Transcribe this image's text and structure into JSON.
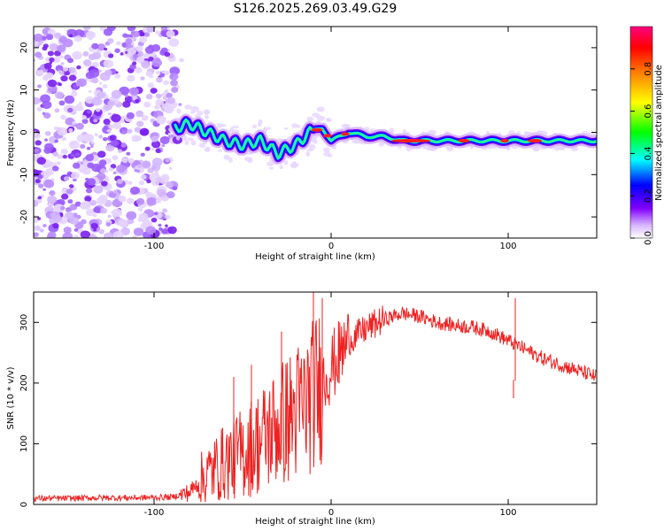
{
  "title": "S126.2025.269.03.49.G29",
  "chart_data": [
    {
      "type": "heatmap",
      "xlabel": "Height of straight line (km)",
      "ylabel": "Frequency (Hz)",
      "xlim": [
        -168,
        150
      ],
      "ylim": [
        -25,
        25
      ],
      "xticks": [
        -100,
        0,
        100
      ],
      "yticks": [
        -20,
        -10,
        0,
        10,
        20
      ],
      "noise_region_x": [
        -168,
        -88
      ],
      "ridge": {
        "x": [
          -88,
          -80,
          -70,
          -60,
          -50,
          -40,
          -30,
          -20,
          -12,
          -5,
          0,
          5,
          10,
          20,
          30,
          40,
          60,
          80,
          100,
          120,
          150
        ],
        "freq": [
          1,
          2,
          0,
          -2,
          -3,
          -2,
          -5,
          -3,
          0,
          1,
          -2,
          -1,
          0,
          -1,
          -1,
          -2,
          -2,
          -2,
          -2,
          -2,
          -2
        ]
      },
      "colorbar": {
        "label": "Normalized spectral amplitude",
        "range": [
          0,
          1
        ],
        "ticks": [
          0.0,
          0.2,
          0.4,
          0.6,
          0.8
        ],
        "tick_labels": [
          "0.0",
          "0.2",
          "0.4",
          "0.6",
          "0.8"
        ],
        "colors": [
          "#ffffff",
          "#8000ff",
          "#0000ff",
          "#00ffff",
          "#00ff00",
          "#ffff00",
          "#ff8000",
          "#ff0000",
          "#ff0080"
        ]
      }
    },
    {
      "type": "line",
      "xlabel": "Height of straight line (km)",
      "ylabel": "SNR (10 * v/v)",
      "xlim": [
        -168,
        150
      ],
      "ylim": [
        0,
        350
      ],
      "xticks": [
        -100,
        0,
        100
      ],
      "yticks": [
        0,
        100,
        200,
        300
      ],
      "color": "#ee2222",
      "series": {
        "x": [
          -168,
          -150,
          -130,
          -110,
          -90,
          -80,
          -70,
          -60,
          -50,
          -40,
          -30,
          -20,
          -10,
          0,
          10,
          20,
          30,
          40,
          50,
          60,
          70,
          80,
          90,
          100,
          110,
          120,
          130,
          140,
          150
        ],
        "snr": [
          10,
          10,
          11,
          11,
          12,
          20,
          50,
          70,
          85,
          105,
          130,
          150,
          180,
          225,
          270,
          290,
          305,
          315,
          310,
          300,
          295,
          292,
          285,
          270,
          255,
          240,
          230,
          220,
          210
        ]
      },
      "spikes": [
        {
          "x": -55,
          "y": 210
        },
        {
          "x": -45,
          "y": 230
        },
        {
          "x": -28,
          "y": 285
        },
        {
          "x": -10,
          "y": 350
        },
        {
          "x": -5,
          "y": 340
        },
        {
          "x": 104,
          "y": 340
        },
        {
          "x": 103,
          "y": 175
        }
      ]
    }
  ]
}
